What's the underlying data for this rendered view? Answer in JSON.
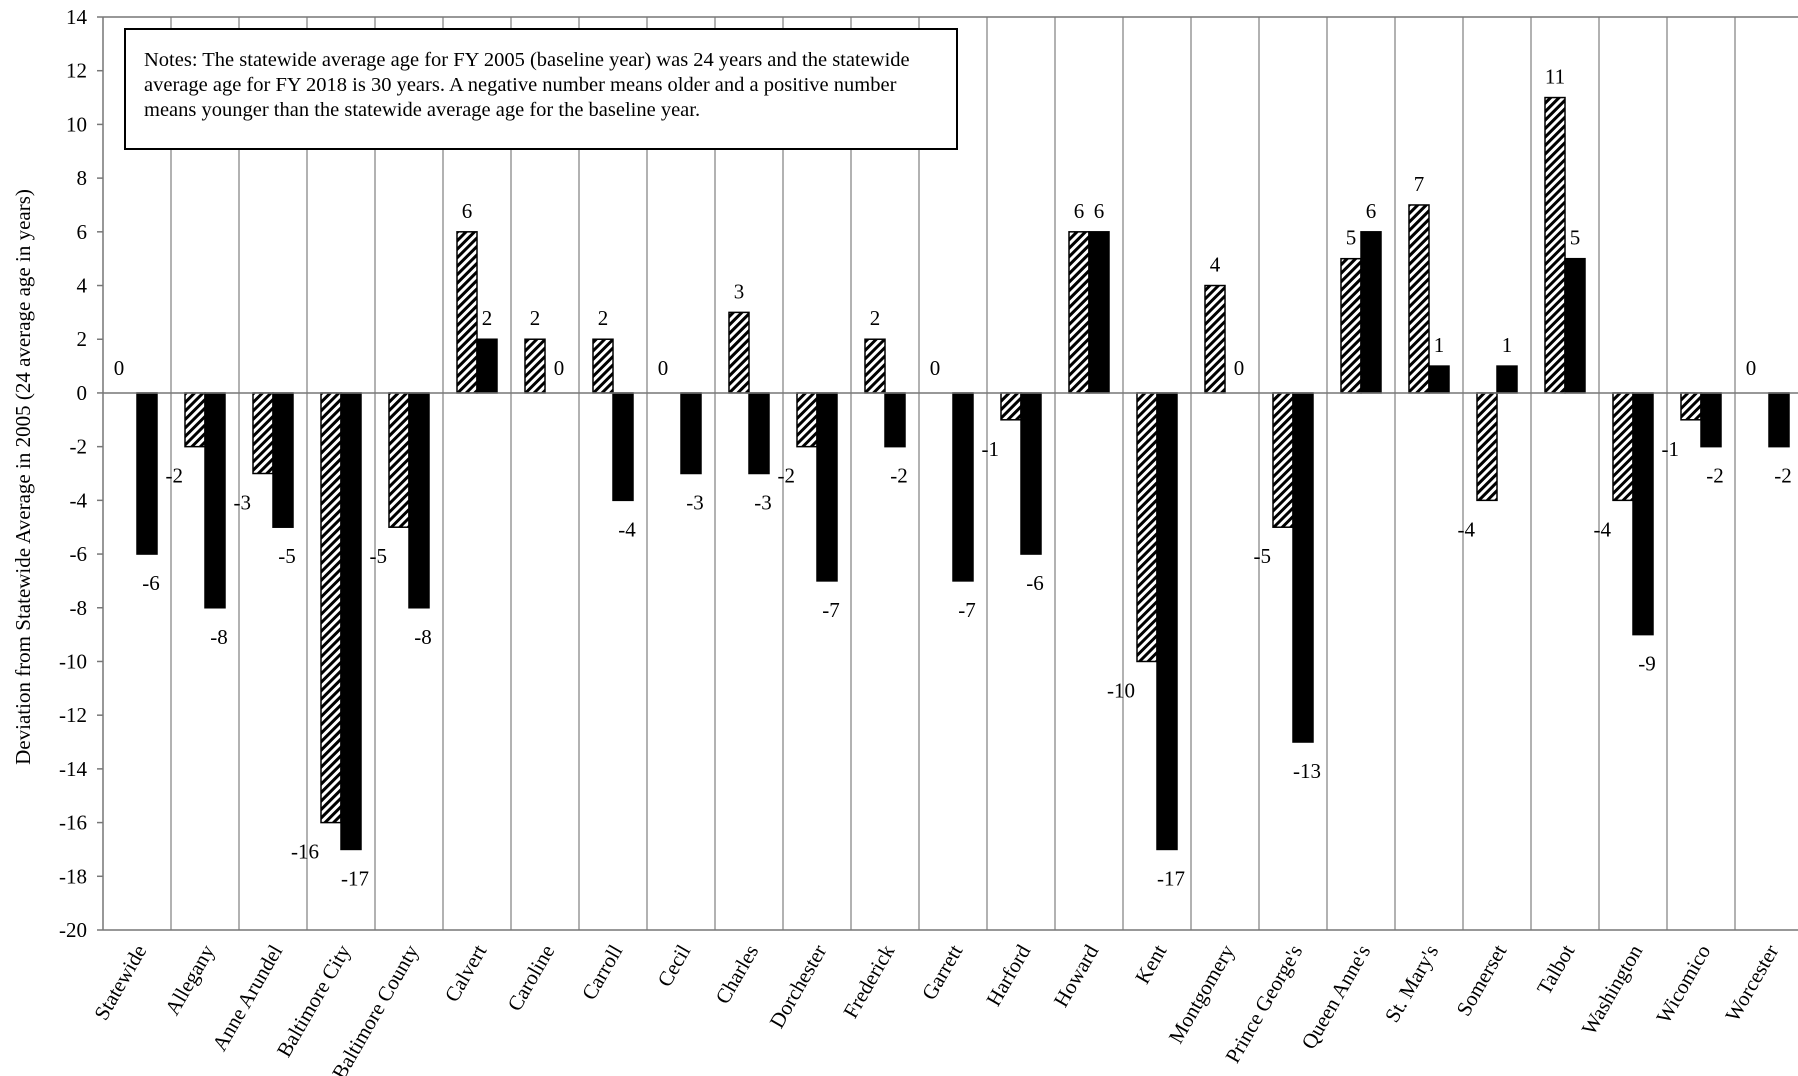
{
  "chart_data": {
    "type": "bar",
    "ylabel": "Deviation from Statewide Average in 2005 (24 average age in years)",
    "xlabel": "",
    "ylim": [
      -20,
      14
    ],
    "yticks": [
      14,
      12,
      10,
      8,
      6,
      4,
      2,
      0,
      -2,
      -4,
      -6,
      -8,
      -10,
      -12,
      -14,
      -16,
      -18,
      -20
    ],
    "grid": "vertical separators between categories",
    "categories": [
      "Statewide",
      "Allegany",
      "Anne Arundel",
      "Baltimore City",
      "Baltimore County",
      "Calvert",
      "Caroline",
      "Carroll",
      "Cecil",
      "Charles",
      "Dorchester",
      "Frederick",
      "Garrett",
      "Harford",
      "Howard",
      "Kent",
      "Montgomery",
      "Prince George's",
      "Queen Anne's",
      "St. Mary's",
      "Somerset",
      "Talbot",
      "Washington",
      "Wicomico",
      "Worcester"
    ],
    "series": [
      {
        "pattern": "diagonal-hatch",
        "values": [
          0,
          -2,
          -3,
          -16,
          -5,
          6,
          2,
          2,
          0,
          3,
          -2,
          2,
          0,
          -1,
          6,
          -10,
          4,
          -5,
          5,
          7,
          -4,
          11,
          -4,
          -1,
          0
        ]
      },
      {
        "pattern": "solid-black",
        "values": [
          -6,
          -8,
          -5,
          -17,
          -8,
          2,
          0,
          -4,
          -3,
          -3,
          -7,
          -2,
          -7,
          -6,
          6,
          -17,
          0,
          -13,
          6,
          1,
          1,
          5,
          -9,
          -2,
          -2
        ]
      }
    ],
    "annotation": "Notes: The statewide average age for FY 2005 (baseline year) was 24 years and the statewide average age for FY 2018 is 30 years. A negative number means older and a positive number means younger than the statewide average age for the baseline year."
  },
  "colors": {
    "solid": "#000000",
    "hatch_fg": "#000000",
    "hatch_bg": "#ffffff",
    "gridline": "#999999"
  }
}
